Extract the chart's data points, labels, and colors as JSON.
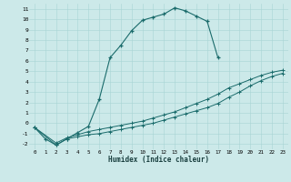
{
  "xlabel": "Humidex (Indice chaleur)",
  "background_color": "#cce9e9",
  "line_color": "#1a6b6b",
  "xlim": [
    -0.5,
    23.5
  ],
  "ylim": [
    -2.5,
    11.5
  ],
  "xticks": [
    0,
    1,
    2,
    3,
    4,
    5,
    6,
    7,
    8,
    9,
    10,
    11,
    12,
    13,
    14,
    15,
    16,
    17,
    18,
    19,
    20,
    21,
    22,
    23
  ],
  "yticks": [
    -2,
    -1,
    0,
    1,
    2,
    3,
    4,
    5,
    6,
    7,
    8,
    9,
    10,
    11
  ],
  "curve1_x": [
    0,
    1,
    2,
    3,
    4,
    5,
    6,
    7,
    8,
    9,
    10,
    11,
    12,
    13,
    14,
    15,
    16,
    17
  ],
  "curve1_y": [
    -0.4,
    -1.5,
    -2.1,
    -1.5,
    -0.9,
    -0.3,
    2.3,
    6.3,
    7.5,
    8.9,
    9.9,
    10.2,
    10.5,
    11.1,
    10.8,
    10.3,
    9.8,
    6.3
  ],
  "curve2_x": [
    0,
    2,
    3,
    4,
    5,
    6,
    7,
    8,
    9,
    10,
    11,
    12,
    13,
    14,
    15,
    16,
    17,
    18,
    19,
    20,
    21,
    22,
    23
  ],
  "curve2_y": [
    -0.4,
    -2.1,
    -1.5,
    -1.3,
    -1.1,
    -1.0,
    -0.8,
    -0.6,
    -0.4,
    -0.2,
    0.0,
    0.3,
    0.6,
    0.9,
    1.2,
    1.5,
    1.9,
    2.5,
    3.0,
    3.6,
    4.1,
    4.5,
    4.8
  ],
  "curve3_x": [
    0,
    2,
    3,
    4,
    5,
    6,
    7,
    8,
    9,
    10,
    11,
    12,
    13,
    14,
    15,
    16,
    17,
    18,
    19,
    20,
    21,
    22,
    23
  ],
  "curve3_y": [
    -0.4,
    -1.9,
    -1.4,
    -1.1,
    -0.8,
    -0.6,
    -0.4,
    -0.2,
    0.0,
    0.2,
    0.5,
    0.8,
    1.1,
    1.5,
    1.9,
    2.3,
    2.8,
    3.4,
    3.8,
    4.2,
    4.6,
    4.9,
    5.1
  ]
}
